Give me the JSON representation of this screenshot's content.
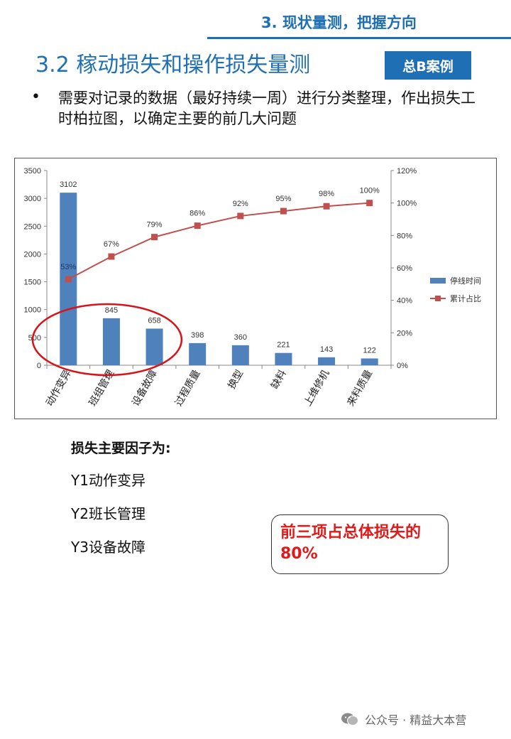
{
  "header": {
    "section_title": "3. 现状量测，把握方向",
    "main_title": "3.2 稼动损失和操作损失量测",
    "case_badge": "总B案例"
  },
  "bullet": {
    "text": "需要对记录的数据（最好持续一周）进行分类整理，作出损失工时柏拉图，以确定主要的前几大问题"
  },
  "chart_data": {
    "type": "bar",
    "categories": [
      "动作变异",
      "班组管理",
      "设备故障",
      "过程质量",
      "换型",
      "缺料",
      "上维修机",
      "来料质量"
    ],
    "series": [
      {
        "name": "停线时间",
        "type": "bar",
        "axis": "left",
        "values": [
          3102,
          845,
          658,
          398,
          360,
          221,
          143,
          122
        ]
      },
      {
        "name": "累计占比",
        "type": "line",
        "axis": "right",
        "values": [
          53,
          67,
          79,
          86,
          92,
          95,
          98,
          100
        ]
      }
    ],
    "bar_labels": [
      "3102",
      "845",
      "658",
      "398",
      "360",
      "221",
      "143",
      "122"
    ],
    "line_labels": [
      "53%",
      "67%",
      "79%",
      "86%",
      "92%",
      "95%",
      "98%",
      "100%"
    ],
    "ylim": [
      0,
      3500
    ],
    "y_ticks": [
      "0",
      "500",
      "1000",
      "1500",
      "2000",
      "2500",
      "3000",
      "3500"
    ],
    "y2lim": [
      0,
      120
    ],
    "y2_ticks": [
      "0%",
      "20%",
      "40%",
      "60%",
      "80%",
      "100%",
      "120%"
    ],
    "grid": false,
    "legend_position": "right",
    "colors": {
      "bar": "#4f81bd",
      "line": "#c0504d",
      "highlight_ellipse": "#d7141a"
    },
    "highlight": [
      "动作变异",
      "班组管理",
      "设备故障"
    ]
  },
  "conclusion": {
    "heading": "损失主要因子为:",
    "factors": [
      "Y1动作变异",
      "Y2班长管理",
      "Y3设备故障"
    ],
    "callout": "前三项占总体损失的80%"
  },
  "watermark": {
    "text": "公众号 · 精益大本营",
    "icon": "wechat-icon"
  }
}
